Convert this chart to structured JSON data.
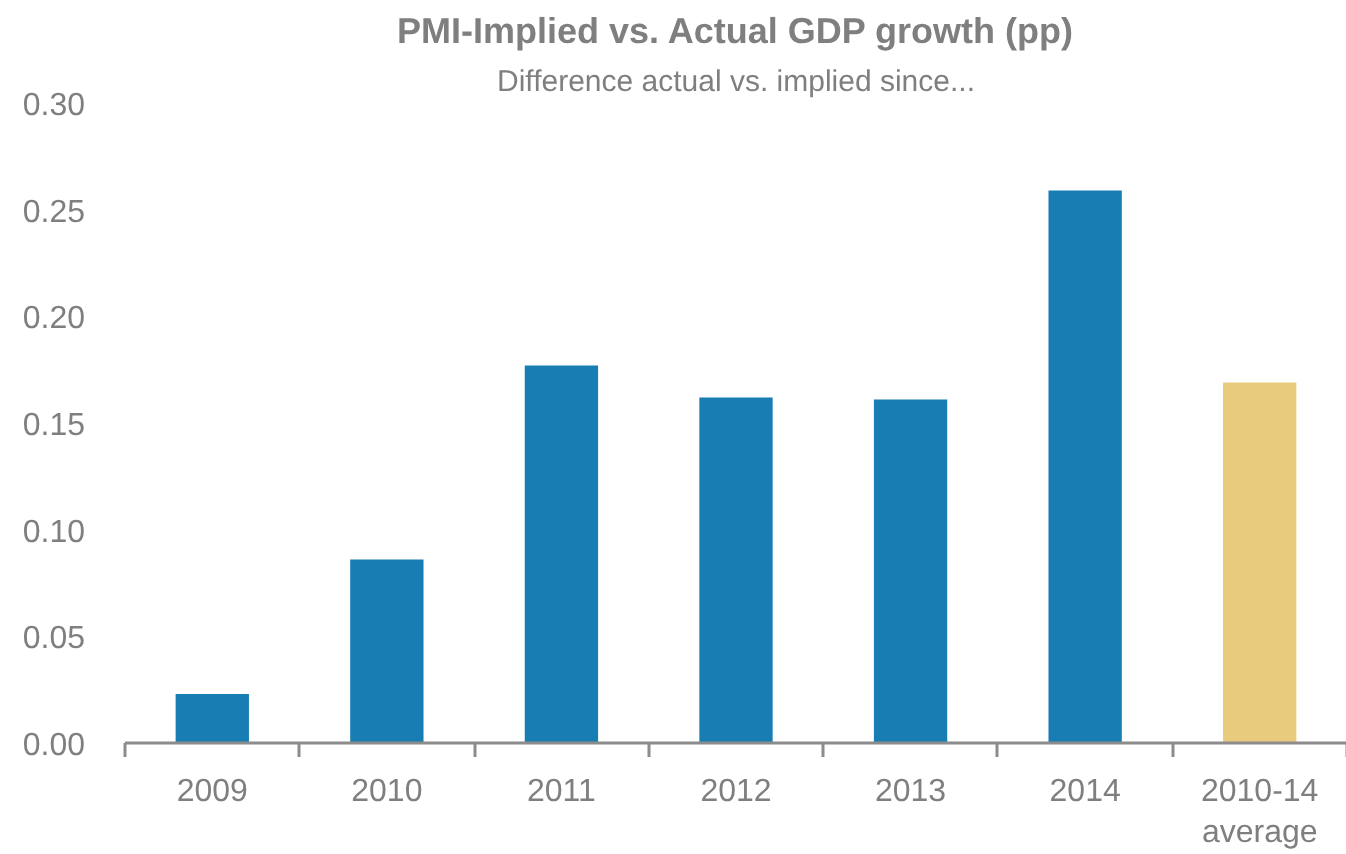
{
  "chart_data": {
    "type": "bar",
    "title": "PMI-Implied vs. Actual GDP growth (pp)",
    "subtitle": "Difference actual vs. implied since...",
    "categories": [
      "2009",
      "2010",
      "2011",
      "2012",
      "2013",
      "2014",
      "2010-14 average"
    ],
    "values": [
      0.023,
      0.086,
      0.177,
      0.162,
      0.161,
      0.259,
      0.169
    ],
    "colors": [
      "#177db3",
      "#177db3",
      "#177db3",
      "#177db3",
      "#177db3",
      "#177db3",
      "#e8cb7d"
    ],
    "ylim": [
      0,
      0.3
    ],
    "yticks": [
      {
        "value": 0,
        "label": "0.00"
      },
      {
        "value": 0.05,
        "label": "0.05"
      },
      {
        "value": 0.1,
        "label": "0.10"
      },
      {
        "value": 0.15,
        "label": "0.15"
      },
      {
        "value": 0.2,
        "label": "0.20"
      },
      {
        "value": 0.25,
        "label": "0.25"
      },
      {
        "value": 0.3,
        "label": "0.30"
      }
    ]
  }
}
